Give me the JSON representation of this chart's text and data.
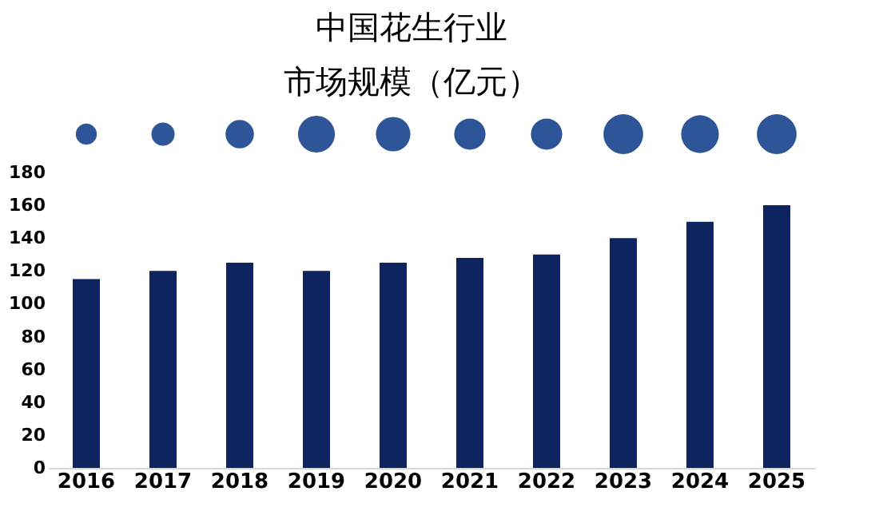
{
  "chart_data": {
    "type": "bar",
    "title": [
      "中国花生行业",
      "市场规模（亿元）"
    ],
    "categories": [
      "2016",
      "2017",
      "2018",
      "2019",
      "2020",
      "2021",
      "2022",
      "2023",
      "2024",
      "2025"
    ],
    "series": [
      {
        "type": "bar",
        "color": "#0d2461",
        "values": [
          115,
          120,
          125,
          120,
          125,
          128,
          130,
          140,
          150,
          160
        ]
      }
    ],
    "ylim": [
      0,
      180
    ],
    "yticks": [
      0,
      20,
      40,
      60,
      80,
      100,
      120,
      140,
      160,
      180
    ],
    "grid": false
  }
}
